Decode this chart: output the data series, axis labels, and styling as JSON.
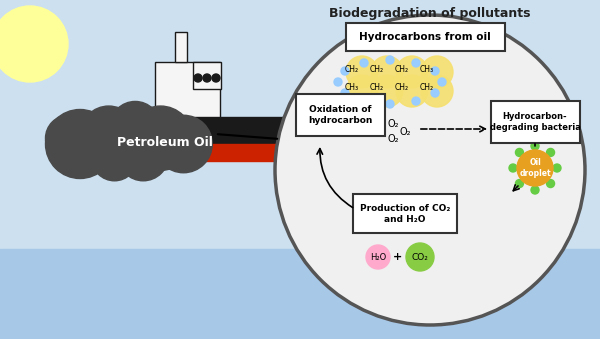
{
  "bg_sky": "#cce0f0",
  "bg_water": "#a8c8e8",
  "ship_hull_black": "#1a1a1a",
  "ship_hull_red": "#cc2200",
  "ship_white": "#f5f5f5",
  "cloud_color": "#4a4a4a",
  "circle_fill": "#f0f0f0",
  "circle_edge": "#555555",
  "sun_color": "#ffff99",
  "title": "Biodegradation of pollutants",
  "petroleum_label": "Petroleum Oil",
  "box1_text": "Hydrocarbons from oil",
  "box2_text": "Oxidation of\nhydrocarbon",
  "box3_text": "Hydrocarbon-\ndegrading bacteria",
  "box4_text": "Production of CO₂\nand H₂O",
  "hc_top": [
    "CH₂",
    "CH₂",
    "CH₂",
    "CH₃"
  ],
  "hc_bot": [
    "CH₃",
    "CH₂",
    "CH₂",
    "CH₂"
  ],
  "o2_labels": [
    "O₂",
    "O₂",
    "O₂"
  ],
  "prod_labels": [
    "H₂O",
    "+",
    "CO₂"
  ],
  "oil_droplet_label": "Oil\ndroplet"
}
